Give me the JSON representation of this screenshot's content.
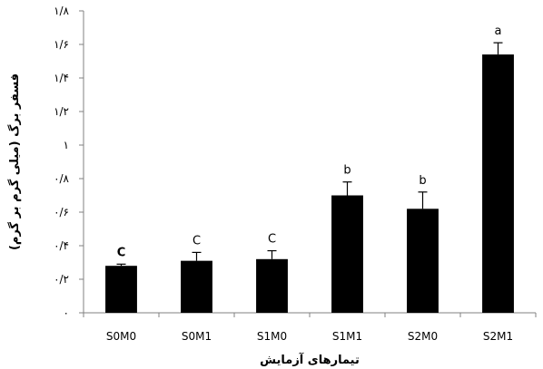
{
  "chart_data": {
    "type": "bar",
    "title": "",
    "xlabel": "تیمارهای آزمایش",
    "ylabel": "فسفر برگ (میلی گرم بر گرم)",
    "ylim": [
      0,
      1.8
    ],
    "yticks": [
      0,
      0.2,
      0.4,
      0.6,
      0.8,
      1,
      1.2,
      1.4,
      1.6,
      1.8
    ],
    "ytick_labels": [
      "۰",
      "۰/۲",
      "۰/۴",
      "۰/۶",
      "۰/۸",
      "۱",
      "۱/۲",
      "۱/۴",
      "۱/۶",
      "۱/۸"
    ],
    "categories": [
      "S0M0",
      "S0M1",
      "S1M0",
      "S1M1",
      "S2M0",
      "S2M1"
    ],
    "values": [
      0.28,
      0.31,
      0.32,
      0.7,
      0.62,
      1.54
    ],
    "errors": [
      0.01,
      0.05,
      0.05,
      0.08,
      0.1,
      0.07
    ],
    "annotations": [
      "C",
      "C",
      "C",
      "b",
      "b",
      "a"
    ],
    "bar_color": "#000000",
    "grid": false,
    "legend": "none"
  }
}
